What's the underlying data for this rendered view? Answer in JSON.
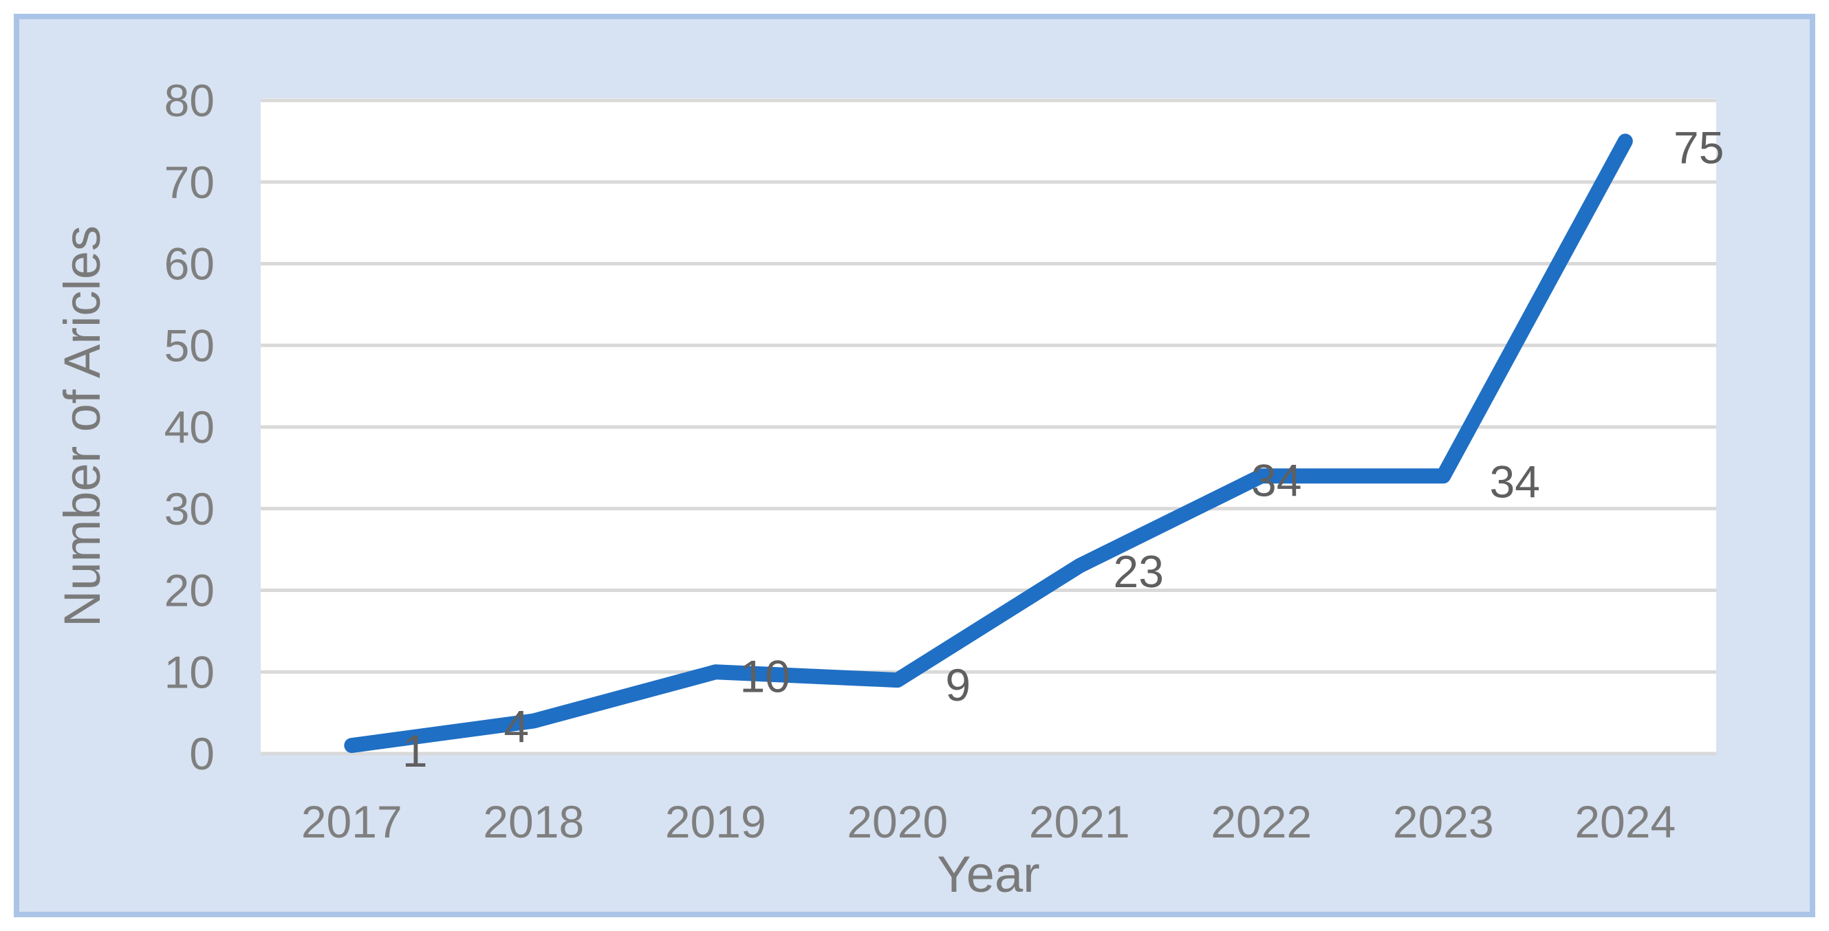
{
  "chart_data": {
    "type": "line",
    "title": "",
    "xlabel": "Year",
    "ylabel": "Number of Aricles",
    "categories": [
      "2017",
      "2018",
      "2019",
      "2020",
      "2021",
      "2022",
      "2023",
      "2024"
    ],
    "series": [
      {
        "name": "Number of Aricles",
        "values": [
          1,
          4,
          10,
          9,
          23,
          34,
          34,
          75
        ]
      }
    ],
    "data_labels": [
      "1",
      "4",
      "10",
      "9",
      "23",
      "34",
      "34",
      "75"
    ],
    "ylim": [
      0,
      80
    ],
    "yticks": [
      0,
      10,
      20,
      30,
      40,
      50,
      60,
      70,
      80
    ],
    "grid": "horizontal",
    "legend": "none"
  },
  "colors": {
    "line": "#1f6fc4",
    "gridline": "#d9d9d9",
    "plot_background": "#ffffff",
    "figure_fill": "#d7e2f2",
    "figure_border": "#a9c4e6",
    "tick_text": "#7f7f7f",
    "axis_title_text": "#7a7a7a",
    "data_label_text": "#5f5f5f"
  }
}
